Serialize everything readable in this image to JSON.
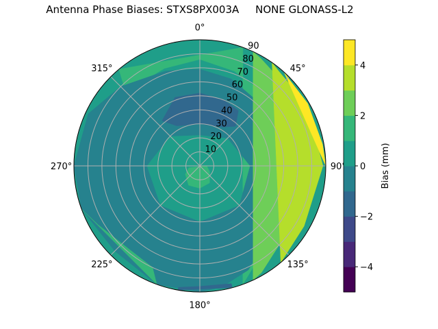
{
  "chart_data": {
    "type": "contour",
    "projection": "polar",
    "title": "Antenna Phase Biases: STXS8PX003A     NONE GLONASS-L2",
    "theta_direction": "clockwise",
    "theta_zero": "north",
    "theta_ticks": [
      "0°",
      "45°",
      "90°",
      "135°",
      "180°",
      "225°",
      "270°",
      "315°"
    ],
    "theta_tick_values": [
      0,
      45,
      90,
      135,
      180,
      225,
      270,
      315
    ],
    "r_ticks": [
      "10",
      "20",
      "30",
      "40",
      "50",
      "60",
      "70",
      "80",
      "90"
    ],
    "r_tick_values": [
      10,
      20,
      30,
      40,
      50,
      60,
      70,
      80,
      90
    ],
    "rlim": [
      0,
      90
    ],
    "grid": true,
    "levels": [
      -5,
      -4,
      -3,
      -2,
      -1,
      0,
      1,
      2,
      3,
      4,
      5
    ],
    "level_colors": [
      "#440154",
      "#482878",
      "#3e4989",
      "#31688e",
      "#26828e",
      "#1f9e89",
      "#35b779",
      "#6ece58",
      "#b5de2b",
      "#fde725"
    ],
    "colorbar": {
      "label": "Bias (mm)",
      "ticks": [
        "−4",
        "−2",
        "0",
        "2",
        "4"
      ],
      "tick_values": [
        -4,
        -2,
        0,
        2,
        4
      ],
      "range": [
        -5,
        5
      ],
      "placement": "right"
    },
    "regions": [
      {
        "level": 0,
        "points": [
          [
            0,
            90
          ],
          [
            360,
            90
          ],
          [
            0,
            0
          ]
        ],
        "full": true
      },
      {
        "level": 1,
        "points": [
          [
            315,
            75
          ],
          [
            340,
            74
          ],
          [
            0,
            76
          ],
          [
            20,
            72
          ],
          [
            45,
            70
          ],
          [
            70,
            68
          ],
          [
            90,
            64
          ],
          [
            110,
            66
          ],
          [
            135,
            72
          ],
          [
            150,
            80
          ],
          [
            160,
            90
          ],
          [
            20,
            90
          ],
          [
            320,
            90
          ]
        ]
      },
      {
        "level": -1,
        "points": [
          [
            0,
            69
          ],
          [
            20,
            66
          ],
          [
            45,
            62
          ],
          [
            70,
            58
          ],
          [
            90,
            56
          ],
          [
            110,
            60
          ],
          [
            135,
            70
          ],
          [
            155,
            82
          ],
          [
            170,
            88
          ],
          [
            180,
            90
          ],
          [
            200,
            90
          ],
          [
            225,
            86
          ],
          [
            250,
            90
          ],
          [
            270,
            90
          ],
          [
            295,
            88
          ],
          [
            315,
            80
          ],
          [
            340,
            72
          ]
        ],
        "hole": [
          [
            0,
            22
          ],
          [
            45,
            28
          ],
          [
            90,
            36
          ],
          [
            135,
            40
          ],
          [
            180,
            40
          ],
          [
            225,
            40
          ],
          [
            270,
            38
          ],
          [
            315,
            30
          ]
        ]
      },
      {
        "level": -2,
        "points": [
          [
            340,
            52
          ],
          [
            0,
            52
          ],
          [
            20,
            50
          ],
          [
            35,
            48
          ],
          [
            42,
            38
          ],
          [
            30,
            32
          ],
          [
            0,
            30
          ],
          [
            330,
            33
          ],
          [
            320,
            42
          ]
        ]
      },
      {
        "level": 1,
        "points": [
          [
            120,
            8
          ],
          [
            150,
            14
          ],
          [
            180,
            16
          ],
          [
            210,
            16
          ],
          [
            240,
            12
          ],
          [
            260,
            8
          ],
          [
            90,
            5
          ]
        ]
      },
      {
        "level": 1,
        "points": [
          [
            205,
            80
          ],
          [
            220,
            78
          ],
          [
            240,
            84
          ],
          [
            250,
            90
          ],
          [
            200,
            90
          ]
        ]
      },
      {
        "level": 2,
        "points": [
          [
            30,
            88
          ],
          [
            45,
            84
          ],
          [
            60,
            84
          ],
          [
            80,
            85
          ],
          [
            95,
            80
          ],
          [
            105,
            73
          ],
          [
            120,
            74
          ],
          [
            135,
            80
          ],
          [
            150,
            88
          ],
          [
            155,
            90
          ],
          [
            25,
            90
          ]
        ]
      },
      {
        "level": 3,
        "points": [
          [
            40,
            88
          ],
          [
            60,
            88
          ],
          [
            90,
            88
          ],
          [
            120,
            86
          ],
          [
            140,
            90
          ],
          [
            35,
            90
          ]
        ]
      },
      {
        "level": 4,
        "points": [
          [
            45,
            89
          ],
          [
            60,
            89
          ],
          [
            80,
            89
          ],
          [
            90,
            90
          ],
          [
            42,
            90
          ]
        ]
      },
      {
        "level": -2,
        "points": [
          [
            165,
            87
          ],
          [
            180,
            86
          ],
          [
            190,
            88
          ],
          [
            190,
            90
          ],
          [
            165,
            90
          ]
        ]
      }
    ]
  }
}
